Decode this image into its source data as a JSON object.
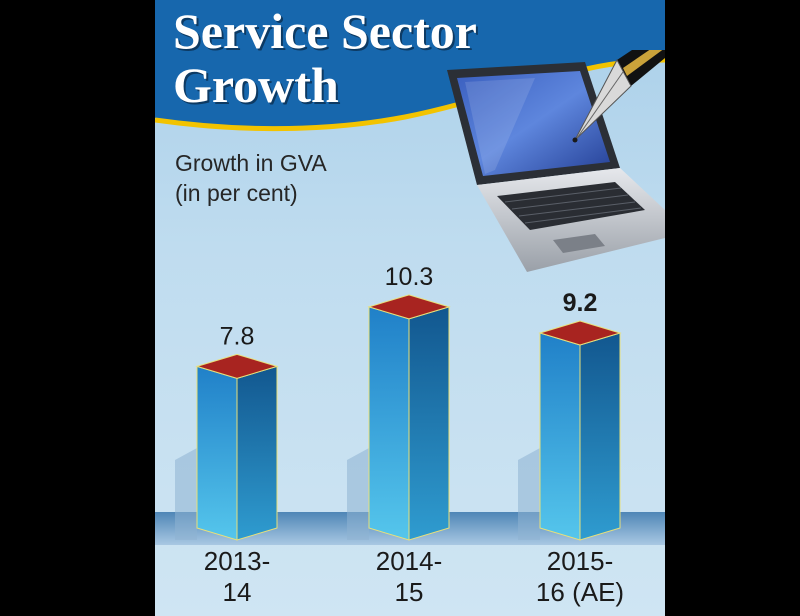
{
  "title": {
    "line1": "Service Sector",
    "line2": "Growth"
  },
  "ylabel": {
    "line1": "Growth in GVA",
    "line2": "(in per cent)"
  },
  "chart_data": {
    "type": "bar",
    "title": "Service Sector Growth",
    "ylabel": "Growth in GVA (in per cent)",
    "xlabel": "",
    "categories": [
      "2013-14",
      "2014-15",
      "2015-16 (AE)"
    ],
    "category_lines": [
      [
        "2013-",
        "14"
      ],
      [
        "2014-",
        "15"
      ],
      [
        "2015-",
        "16 (AE)"
      ]
    ],
    "values": [
      7.8,
      10.3,
      9.2
    ],
    "value_labels": [
      "7.8",
      "10.3",
      "9.2"
    ],
    "highlighted_index": 2,
    "bar_style": "3d",
    "grid": false,
    "legend": "none"
  },
  "colors": {
    "banner": "#1767ad",
    "banner_stripe": "#f2c300",
    "bar_front": "#2f9ad6",
    "bar_side": "#1c74b3",
    "bar_top": "#a82420",
    "bar_edge": "#e8e07a"
  },
  "icons": {
    "illustration": "laptop-with-pen-icon"
  }
}
